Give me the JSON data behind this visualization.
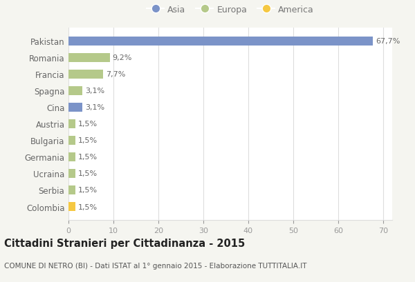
{
  "categories": [
    "Pakistan",
    "Romania",
    "Francia",
    "Spagna",
    "Cina",
    "Austria",
    "Bulgaria",
    "Germania",
    "Ucraina",
    "Serbia",
    "Colombia"
  ],
  "values": [
    67.7,
    9.2,
    7.7,
    3.1,
    3.1,
    1.5,
    1.5,
    1.5,
    1.5,
    1.5,
    1.5
  ],
  "labels": [
    "67,7%",
    "9,2%",
    "7,7%",
    "3,1%",
    "3,1%",
    "1,5%",
    "1,5%",
    "1,5%",
    "1,5%",
    "1,5%",
    "1,5%"
  ],
  "colors": [
    "#7b93c8",
    "#b5c98a",
    "#b5c98a",
    "#b5c98a",
    "#7b93c8",
    "#b5c98a",
    "#b5c98a",
    "#b5c98a",
    "#b5c98a",
    "#b5c98a",
    "#f5c842"
  ],
  "legend": [
    {
      "label": "Asia",
      "color": "#7b93c8"
    },
    {
      "label": "Europa",
      "color": "#b5c98a"
    },
    {
      "label": "America",
      "color": "#f5c842"
    }
  ],
  "xlim": [
    0,
    72
  ],
  "xticks": [
    0,
    10,
    20,
    30,
    40,
    50,
    60,
    70
  ],
  "title": "Cittadini Stranieri per Cittadinanza - 2015",
  "subtitle": "COMUNE DI NETRO (BI) - Dati ISTAT al 1° gennaio 2015 - Elaborazione TUTTITALIA.IT",
  "background_color": "#f5f5f0",
  "bar_background": "#ffffff",
  "grid_color": "#dddddd",
  "label_color": "#666666",
  "bar_height": 0.55,
  "label_fontsize": 8,
  "ytick_fontsize": 8.5,
  "xtick_fontsize": 8,
  "title_fontsize": 10.5,
  "subtitle_fontsize": 7.5
}
